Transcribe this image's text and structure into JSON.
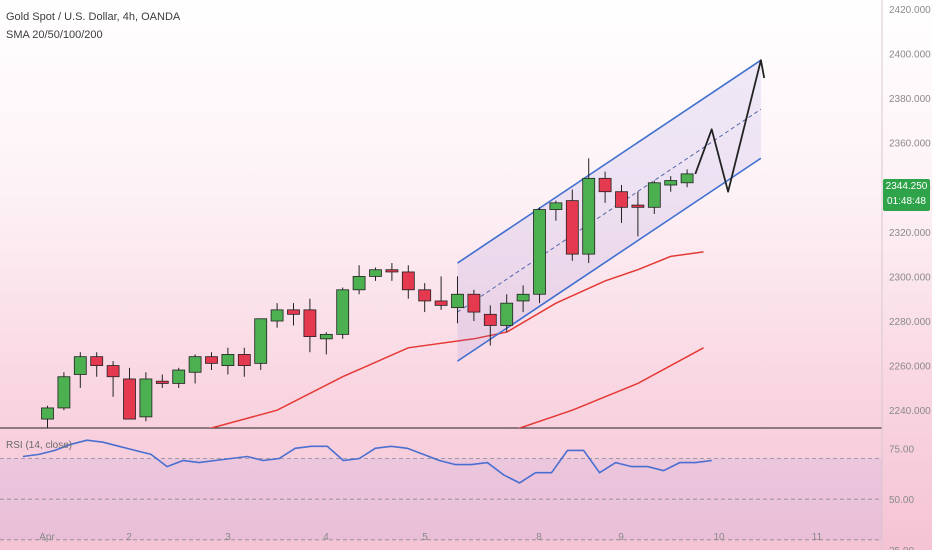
{
  "header": {
    "title": "Gold Spot / U.S. Dollar, 4h, OANDA",
    "indicators": "SMA 20/50/100/200"
  },
  "price_badge": {
    "price": "2344.250",
    "countdown": "01:48:48",
    "color": "#2fa34a"
  },
  "rsi": {
    "label": "RSI (14, close)"
  },
  "colors": {
    "up": "#4caf50",
    "down": "#e53950",
    "sma_red": "#e53935",
    "channel": "#3f6fd0",
    "rsi_line": "#4a6fd0"
  },
  "chart_data": [
    {
      "type": "candlestick",
      "title": "Gold Spot / U.S. Dollar, 4h, OANDA",
      "ylim": [
        2232,
        2424
      ],
      "y_ticks": [
        "2420.000",
        "2400.000",
        "2380.000",
        "2360.000",
        "2340.000",
        "2320.000",
        "2300.000",
        "2280.000",
        "2260.000",
        "2240.000"
      ],
      "x_ticks": [
        "Apr",
        "2",
        "3",
        "4",
        "5",
        "8",
        "9",
        "10",
        "11"
      ],
      "candles": [
        {
          "o": 2236,
          "h": 2242,
          "l": 2232,
          "c": 2241
        },
        {
          "o": 2241,
          "h": 2257,
          "l": 2240,
          "c": 2255
        },
        {
          "o": 2256,
          "h": 2266,
          "l": 2250,
          "c": 2264
        },
        {
          "o": 2264,
          "h": 2266,
          "l": 2255,
          "c": 2260
        },
        {
          "o": 2260,
          "h": 2262,
          "l": 2246,
          "c": 2255
        },
        {
          "o": 2254,
          "h": 2259,
          "l": 2236,
          "c": 2236
        },
        {
          "o": 2237,
          "h": 2257,
          "l": 2235,
          "c": 2254
        },
        {
          "o": 2253,
          "h": 2256,
          "l": 2250,
          "c": 2252
        },
        {
          "o": 2252,
          "h": 2259,
          "l": 2250,
          "c": 2258
        },
        {
          "o": 2257,
          "h": 2265,
          "l": 2252,
          "c": 2264
        },
        {
          "o": 2264,
          "h": 2266,
          "l": 2258,
          "c": 2261
        },
        {
          "o": 2260,
          "h": 2268,
          "l": 2256,
          "c": 2265
        },
        {
          "o": 2265,
          "h": 2268,
          "l": 2255,
          "c": 2260
        },
        {
          "o": 2261,
          "h": 2281,
          "l": 2258,
          "c": 2281
        },
        {
          "o": 2280,
          "h": 2288,
          "l": 2277,
          "c": 2285
        },
        {
          "o": 2285,
          "h": 2288,
          "l": 2278,
          "c": 2283
        },
        {
          "o": 2285,
          "h": 2290,
          "l": 2266,
          "c": 2273
        },
        {
          "o": 2272,
          "h": 2275,
          "l": 2265,
          "c": 2274
        },
        {
          "o": 2274,
          "h": 2295,
          "l": 2272,
          "c": 2294
        },
        {
          "o": 2294,
          "h": 2305,
          "l": 2292,
          "c": 2300
        },
        {
          "o": 2300,
          "h": 2304,
          "l": 2298,
          "c": 2303
        },
        {
          "o": 2303,
          "h": 2306,
          "l": 2298,
          "c": 2302
        },
        {
          "o": 2302,
          "h": 2305,
          "l": 2290,
          "c": 2294
        },
        {
          "o": 2294,
          "h": 2297,
          "l": 2284,
          "c": 2289
        },
        {
          "o": 2289,
          "h": 2300,
          "l": 2285,
          "c": 2287
        },
        {
          "o": 2286,
          "h": 2300,
          "l": 2279,
          "c": 2292
        },
        {
          "o": 2292,
          "h": 2294,
          "l": 2280,
          "c": 2284
        },
        {
          "o": 2283,
          "h": 2287,
          "l": 2269,
          "c": 2278
        },
        {
          "o": 2278,
          "h": 2292,
          "l": 2275,
          "c": 2288
        },
        {
          "o": 2289,
          "h": 2296,
          "l": 2284,
          "c": 2292
        },
        {
          "o": 2292,
          "h": 2331,
          "l": 2288,
          "c": 2330
        },
        {
          "o": 2330,
          "h": 2334,
          "l": 2325,
          "c": 2333
        },
        {
          "o": 2334,
          "h": 2339,
          "l": 2307,
          "c": 2310
        },
        {
          "o": 2310,
          "h": 2353,
          "l": 2306,
          "c": 2344
        },
        {
          "o": 2344,
          "h": 2347,
          "l": 2333,
          "c": 2338
        },
        {
          "o": 2338,
          "h": 2341,
          "l": 2324,
          "c": 2331
        },
        {
          "o": 2332,
          "h": 2338,
          "l": 2318,
          "c": 2331
        },
        {
          "o": 2331,
          "h": 2343,
          "l": 2328,
          "c": 2342
        },
        {
          "o": 2341,
          "h": 2345,
          "l": 2338,
          "c": 2343
        },
        {
          "o": 2342,
          "h": 2348,
          "l": 2340,
          "c": 2346
        }
      ],
      "sma_red": [
        {
          "x": 0,
          "y": 2215
        },
        {
          "x": 8,
          "y": 2228
        },
        {
          "x": 14,
          "y": 2240
        },
        {
          "x": 18,
          "y": 2255
        },
        {
          "x": 22,
          "y": 2268
        },
        {
          "x": 26,
          "y": 2272
        },
        {
          "x": 28,
          "y": 2275
        },
        {
          "x": 31,
          "y": 2288
        },
        {
          "x": 34,
          "y": 2298
        },
        {
          "x": 36,
          "y": 2303
        },
        {
          "x": 38,
          "y": 2309
        },
        {
          "x": 40,
          "y": 2311
        }
      ],
      "sma_red2": [
        {
          "x": 18,
          "y": 2228
        },
        {
          "x": 24,
          "y": 2226
        },
        {
          "x": 28,
          "y": 2230
        },
        {
          "x": 32,
          "y": 2240
        },
        {
          "x": 36,
          "y": 2252
        },
        {
          "x": 40,
          "y": 2268
        }
      ],
      "channel": {
        "upper": [
          {
            "x": 25,
            "y": 2306
          },
          {
            "x": 43.5,
            "y": 2397
          }
        ],
        "lower": [
          {
            "x": 25,
            "y": 2262
          },
          {
            "x": 43.5,
            "y": 2353
          }
        ],
        "mid": [
          {
            "x": 25,
            "y": 2284
          },
          {
            "x": 43.5,
            "y": 2375
          }
        ]
      },
      "projection": [
        {
          "x": 39.5,
          "y": 2346
        },
        {
          "x": 40.5,
          "y": 2366
        },
        {
          "x": 41.5,
          "y": 2338
        },
        {
          "x": 43.5,
          "y": 2397
        },
        {
          "x": 43.7,
          "y": 2389
        }
      ]
    },
    {
      "type": "line",
      "title": "RSI (14, close)",
      "ylim": [
        25,
        85
      ],
      "y_ticks": [
        "75.00",
        "50.00",
        "25.00"
      ],
      "levels": [
        70,
        50,
        30
      ],
      "values": [
        71,
        72,
        74,
        77,
        79,
        78,
        76,
        74,
        72,
        66,
        69,
        68,
        69,
        70,
        71,
        69,
        70,
        75,
        76,
        76,
        69,
        70,
        75,
        76,
        75,
        72,
        69,
        67,
        67,
        68,
        62,
        58,
        63,
        63,
        74,
        74,
        63,
        68,
        66,
        66,
        64,
        68,
        68,
        69
      ],
      "x_range": [
        -1.5,
        40.5
      ]
    }
  ]
}
